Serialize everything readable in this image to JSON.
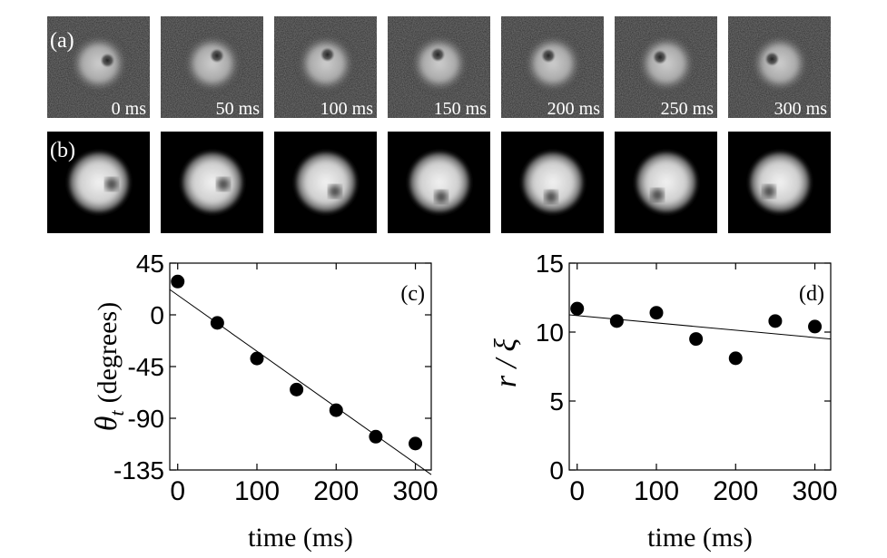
{
  "panels": {
    "a": {
      "label": "(a)",
      "frames": [
        "0 ms",
        "50 ms",
        "100 ms",
        "150 ms",
        "200 ms",
        "250 ms",
        "300 ms"
      ]
    },
    "b": {
      "label": "(b)",
      "frame_count": 7
    }
  },
  "chart_data": [
    {
      "type": "scatter",
      "panel_label": "(c)",
      "xlabel": "time (ms)",
      "ylabel_symbol": "θ",
      "ylabel_subscript": "t",
      "ylabel_text": "(degrees)",
      "x_ticks": [
        0,
        100,
        200,
        300
      ],
      "y_ticks": [
        45,
        0,
        -45,
        -90,
        -135
      ],
      "y_tick_labels": [
        "45",
        "0",
        "-45",
        "-90",
        "-135"
      ],
      "xlim": [
        -10,
        320
      ],
      "ylim": [
        -135,
        45
      ],
      "points": {
        "x": [
          0,
          50,
          100,
          150,
          200,
          250,
          300
        ],
        "y": [
          29,
          -7,
          -38,
          -65,
          -83,
          -106,
          -112
        ]
      },
      "fit_line": {
        "x": [
          -10,
          320
        ],
        "y": [
          22,
          -139
        ]
      }
    },
    {
      "type": "scatter",
      "panel_label": "(d)",
      "xlabel": "time (ms)",
      "ylabel": "r / ξ",
      "x_ticks": [
        0,
        100,
        200,
        300
      ],
      "y_ticks": [
        15,
        10,
        5,
        0
      ],
      "y_tick_labels": [
        "15",
        "10",
        "5",
        "0"
      ],
      "xlim": [
        -10,
        320
      ],
      "ylim": [
        0,
        15
      ],
      "points": {
        "x": [
          0,
          50,
          100,
          150,
          200,
          250,
          300
        ],
        "y": [
          11.7,
          10.8,
          11.4,
          9.5,
          8.1,
          10.8,
          10.4
        ]
      },
      "fit_line": {
        "x": [
          -10,
          320
        ],
        "y": [
          11.25,
          9.5
        ]
      }
    }
  ]
}
